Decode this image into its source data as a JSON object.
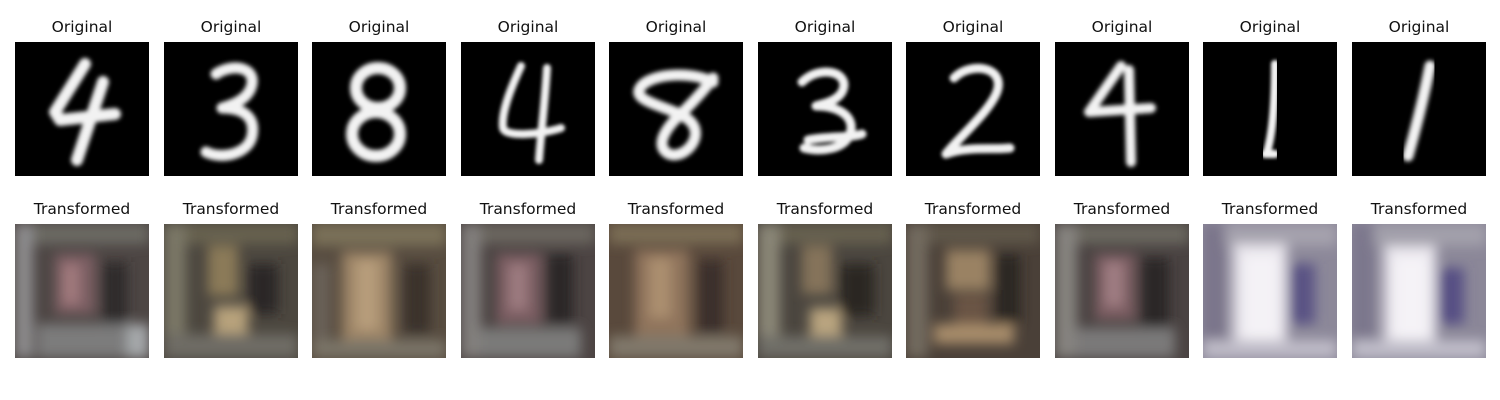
{
  "figure": {
    "panels": [
      {
        "row": "original",
        "title": "Original",
        "digit": "4"
      },
      {
        "row": "original",
        "title": "Original",
        "digit": "3"
      },
      {
        "row": "original",
        "title": "Original",
        "digit": "8"
      },
      {
        "row": "original",
        "title": "Original",
        "digit": "4"
      },
      {
        "row": "original",
        "title": "Original",
        "digit": "8"
      },
      {
        "row": "original",
        "title": "Original",
        "digit": "3"
      },
      {
        "row": "original",
        "title": "Original",
        "digit": "2"
      },
      {
        "row": "original",
        "title": "Original",
        "digit": "4"
      },
      {
        "row": "original",
        "title": "Original",
        "digit": "1"
      },
      {
        "row": "original",
        "title": "Original",
        "digit": "1"
      },
      {
        "row": "transformed",
        "title": "Transformed",
        "palette": "mauve-brown"
      },
      {
        "row": "transformed",
        "title": "Transformed",
        "palette": "olive-brown"
      },
      {
        "row": "transformed",
        "title": "Transformed",
        "palette": "tan-brown"
      },
      {
        "row": "transformed",
        "title": "Transformed",
        "palette": "mauve-brown"
      },
      {
        "row": "transformed",
        "title": "Transformed",
        "palette": "tan-brown"
      },
      {
        "row": "transformed",
        "title": "Transformed",
        "palette": "olive-brown"
      },
      {
        "row": "transformed",
        "title": "Transformed",
        "palette": "olive-brown"
      },
      {
        "row": "transformed",
        "title": "Transformed",
        "palette": "mauve-brown"
      },
      {
        "row": "transformed",
        "title": "Transformed",
        "palette": "pale-violet"
      },
      {
        "row": "transformed",
        "title": "Transformed",
        "palette": "pale-violet"
      }
    ]
  }
}
